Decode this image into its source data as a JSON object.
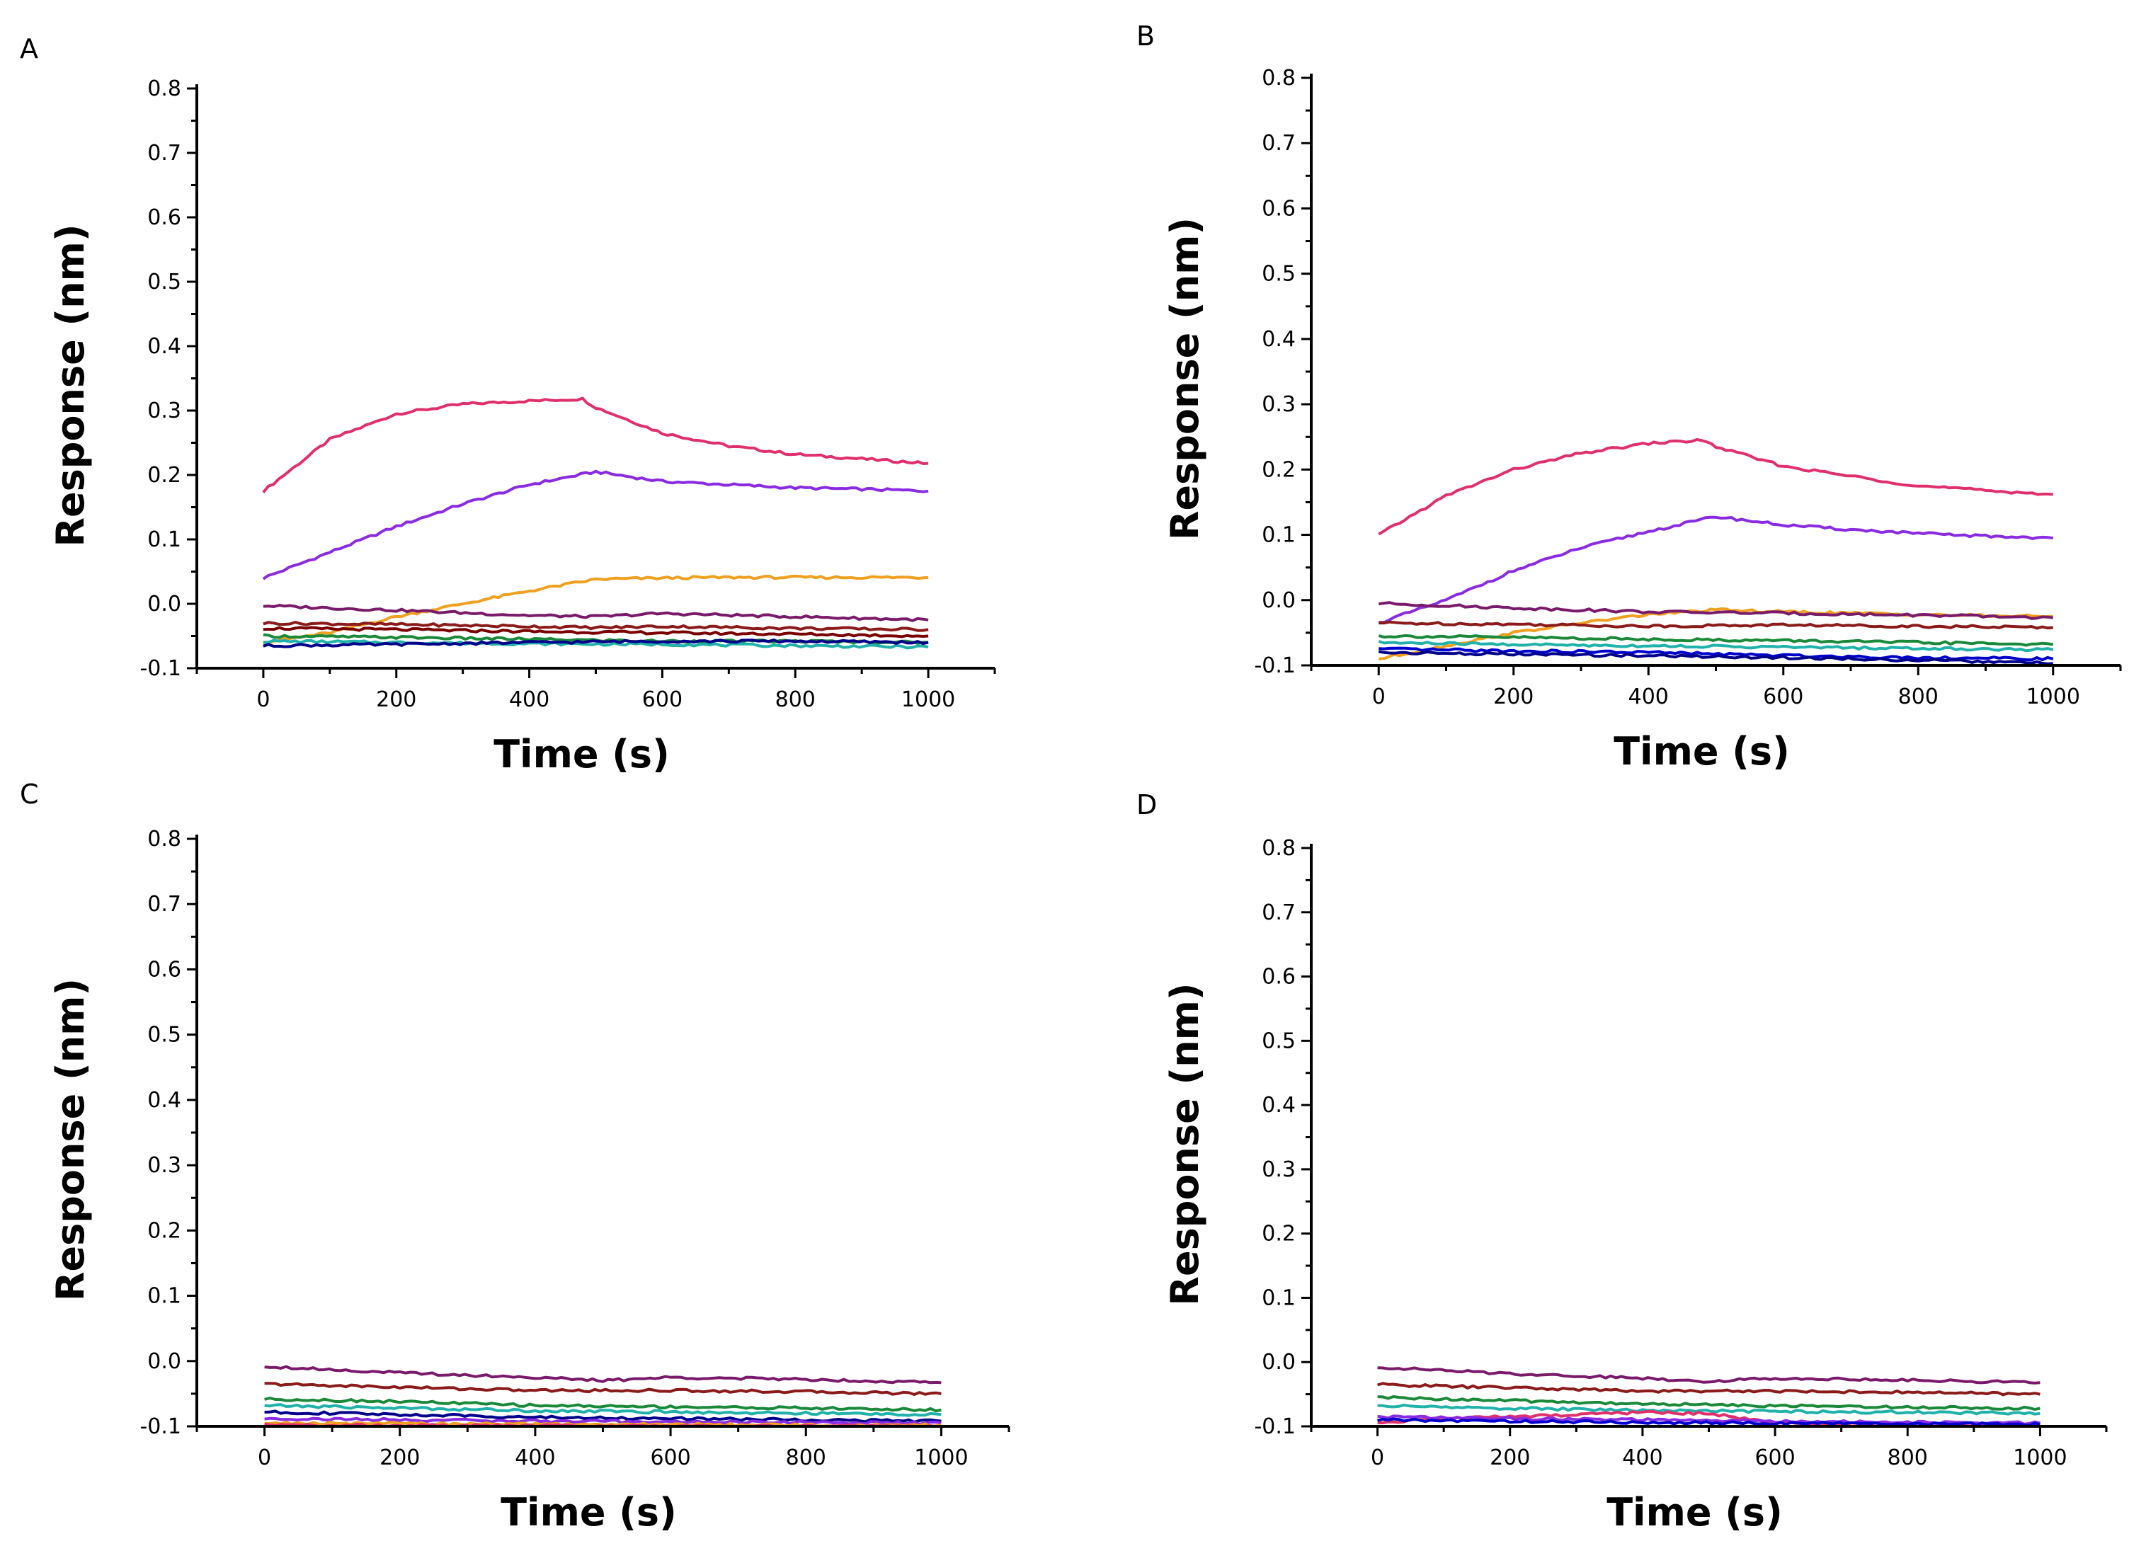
{
  "chart_data": [
    {
      "panel": "A",
      "type": "line",
      "xlabel": "Time (s)",
      "ylabel": "Response (nm)",
      "xlim": [
        -100,
        1100
      ],
      "ylim": [
        -0.1,
        0.8
      ],
      "x_ticks": [
        "0",
        "200",
        "400",
        "600",
        "800",
        "1000"
      ],
      "y_ticks": [
        "-0.1",
        "0.0",
        "0.1",
        "0.2",
        "0.3",
        "0.4",
        "0.5",
        "0.6",
        "0.7",
        "0.8"
      ],
      "series": [
        {
          "color": "#e0306a",
          "x": [
            0,
            100,
            200,
            300,
            400,
            480,
            500,
            600,
            700,
            800,
            900,
            1000
          ],
          "values": [
            0.175,
            0.255,
            0.295,
            0.31,
            0.315,
            0.318,
            0.305,
            0.265,
            0.245,
            0.232,
            0.225,
            0.218
          ]
        },
        {
          "color": "#8a2be2",
          "x": [
            0,
            100,
            200,
            300,
            400,
            500,
            600,
            700,
            800,
            900,
            1000
          ],
          "values": [
            0.04,
            0.08,
            0.12,
            0.155,
            0.185,
            0.205,
            0.19,
            0.185,
            0.18,
            0.178,
            0.175
          ]
        },
        {
          "color": "#f0a020",
          "x": [
            0,
            100,
            200,
            300,
            400,
            500,
            600,
            700,
            800,
            900,
            1000
          ],
          "values": [
            -0.06,
            -0.045,
            -0.02,
            0.0,
            0.02,
            0.038,
            0.04,
            0.041,
            0.041,
            0.041,
            0.041
          ]
        },
        {
          "color": "#7a1a6a",
          "x": [
            0,
            200,
            400,
            500,
            600,
            800,
            1000
          ],
          "values": [
            -0.003,
            -0.01,
            -0.018,
            -0.02,
            -0.015,
            -0.02,
            -0.025
          ]
        },
        {
          "color": "#8b1a1a",
          "x": [
            0,
            200,
            400,
            500,
            600,
            800,
            1000
          ],
          "values": [
            -0.03,
            -0.032,
            -0.035,
            -0.037,
            -0.035,
            -0.038,
            -0.04
          ]
        },
        {
          "color": "#7a0000",
          "x": [
            0,
            200,
            400,
            600,
            800,
            1000
          ],
          "values": [
            -0.038,
            -0.04,
            -0.043,
            -0.045,
            -0.047,
            -0.05
          ]
        },
        {
          "color": "#1a8a3a",
          "x": [
            0,
            200,
            400,
            600,
            800,
            1000
          ],
          "values": [
            -0.05,
            -0.052,
            -0.055,
            -0.058,
            -0.058,
            -0.06
          ]
        },
        {
          "color": "#20b2aa",
          "x": [
            0,
            200,
            400,
            600,
            800,
            1000
          ],
          "values": [
            -0.058,
            -0.06,
            -0.062,
            -0.063,
            -0.065,
            -0.067
          ]
        },
        {
          "color": "#00008b",
          "x": [
            0,
            200,
            400,
            600,
            800,
            1000
          ],
          "values": [
            -0.065,
            -0.063,
            -0.06,
            -0.058,
            -0.058,
            -0.06
          ]
        }
      ]
    },
    {
      "panel": "B",
      "type": "line",
      "xlabel": "Time (s)",
      "ylabel": "Response (nm)",
      "xlim": [
        -100,
        1100
      ],
      "ylim": [
        -0.1,
        0.8
      ],
      "x_ticks": [
        "0",
        "200",
        "400",
        "600",
        "800",
        "1000"
      ],
      "y_ticks": [
        "-0.1",
        "0.0",
        "0.1",
        "0.2",
        "0.3",
        "0.4",
        "0.5",
        "0.6",
        "0.7",
        "0.8"
      ],
      "series": [
        {
          "color": "#e0306a",
          "x": [
            0,
            100,
            200,
            300,
            400,
            480,
            500,
            600,
            700,
            800,
            900,
            1000
          ],
          "values": [
            0.1,
            0.16,
            0.2,
            0.225,
            0.24,
            0.245,
            0.235,
            0.205,
            0.19,
            0.175,
            0.168,
            0.162
          ]
        },
        {
          "color": "#8a2be2",
          "x": [
            0,
            100,
            200,
            300,
            400,
            500,
            600,
            700,
            800,
            900,
            1000
          ],
          "values": [
            -0.035,
            0.0,
            0.045,
            0.08,
            0.105,
            0.128,
            0.115,
            0.108,
            0.102,
            0.098,
            0.095
          ]
        },
        {
          "color": "#f0a020",
          "x": [
            0,
            100,
            200,
            300,
            400,
            500,
            600,
            700,
            800,
            900,
            1000
          ],
          "values": [
            -0.09,
            -0.07,
            -0.05,
            -0.035,
            -0.022,
            -0.015,
            -0.018,
            -0.02,
            -0.022,
            -0.024,
            -0.025
          ]
        },
        {
          "color": "#7a1a6a",
          "x": [
            0,
            200,
            400,
            600,
            800,
            1000
          ],
          "values": [
            -0.005,
            -0.012,
            -0.018,
            -0.02,
            -0.023,
            -0.027
          ]
        },
        {
          "color": "#8b1a1a",
          "x": [
            0,
            200,
            400,
            600,
            800,
            1000
          ],
          "values": [
            -0.035,
            -0.037,
            -0.04,
            -0.038,
            -0.04,
            -0.042
          ]
        },
        {
          "color": "#1a8a3a",
          "x": [
            0,
            200,
            400,
            600,
            800,
            1000
          ],
          "values": [
            -0.055,
            -0.057,
            -0.06,
            -0.062,
            -0.065,
            -0.068
          ]
        },
        {
          "color": "#20b2aa",
          "x": [
            0,
            200,
            400,
            600,
            800,
            1000
          ],
          "values": [
            -0.065,
            -0.068,
            -0.07,
            -0.072,
            -0.074,
            -0.076
          ]
        },
        {
          "color": "#0000cd",
          "x": [
            0,
            200,
            400,
            600,
            800,
            1000
          ],
          "values": [
            -0.075,
            -0.078,
            -0.08,
            -0.085,
            -0.088,
            -0.09
          ]
        },
        {
          "color": "#00008b",
          "x": [
            0,
            200,
            400,
            600,
            800,
            1000
          ],
          "values": [
            -0.08,
            -0.083,
            -0.085,
            -0.088,
            -0.092,
            -0.097
          ]
        }
      ]
    },
    {
      "panel": "C",
      "type": "line",
      "xlabel": "Time (s)",
      "ylabel": "Response (nm)",
      "xlim": [
        -100,
        1100
      ],
      "ylim": [
        -0.1,
        0.8
      ],
      "x_ticks": [
        "0",
        "200",
        "400",
        "600",
        "800",
        "1000"
      ],
      "y_ticks": [
        "-0.1",
        "0.0",
        "0.1",
        "0.2",
        "0.3",
        "0.4",
        "0.5",
        "0.6",
        "0.7",
        "0.8"
      ],
      "series": [
        {
          "color": "#7a1a6a",
          "x": [
            0,
            200,
            400,
            500,
            600,
            800,
            1000
          ],
          "values": [
            -0.008,
            -0.018,
            -0.025,
            -0.03,
            -0.025,
            -0.028,
            -0.033
          ]
        },
        {
          "color": "#8b1a1a",
          "x": [
            0,
            200,
            400,
            600,
            800,
            1000
          ],
          "values": [
            -0.035,
            -0.04,
            -0.045,
            -0.045,
            -0.047,
            -0.05
          ]
        },
        {
          "color": "#1a8a3a",
          "x": [
            0,
            200,
            400,
            600,
            800,
            1000
          ],
          "values": [
            -0.058,
            -0.062,
            -0.068,
            -0.07,
            -0.072,
            -0.075
          ]
        },
        {
          "color": "#20b2aa",
          "x": [
            0,
            200,
            400,
            600,
            800,
            1000
          ],
          "values": [
            -0.068,
            -0.072,
            -0.076,
            -0.078,
            -0.08,
            -0.082
          ]
        },
        {
          "color": "#00008b",
          "x": [
            0,
            200,
            400,
            600,
            800,
            1000
          ],
          "values": [
            -0.078,
            -0.082,
            -0.086,
            -0.088,
            -0.09,
            -0.092
          ]
        },
        {
          "color": "#8a2be2",
          "x": [
            0,
            200,
            400,
            600,
            800,
            1000
          ],
          "values": [
            -0.088,
            -0.09,
            -0.092,
            -0.093,
            -0.094,
            -0.095
          ]
        },
        {
          "color": "#f0a020",
          "x": [
            0,
            200,
            400,
            600,
            800,
            1000
          ],
          "values": [
            -0.095,
            -0.096,
            -0.097,
            -0.097,
            -0.098,
            -0.098
          ]
        },
        {
          "color": "#e0306a",
          "x": [
            0,
            200,
            400,
            600,
            800,
            1000
          ],
          "values": [
            -0.098,
            -0.099,
            -0.099,
            -0.1,
            -0.1,
            -0.1
          ]
        }
      ]
    },
    {
      "panel": "D",
      "type": "line",
      "xlabel": "Time (s)",
      "ylabel": "Response (nm)",
      "xlim": [
        -100,
        1100
      ],
      "ylim": [
        -0.1,
        0.8
      ],
      "x_ticks": [
        "0",
        "200",
        "400",
        "600",
        "800",
        "1000"
      ],
      "y_ticks": [
        "-0.1",
        "0.0",
        "0.1",
        "0.2",
        "0.3",
        "0.4",
        "0.5",
        "0.6",
        "0.7",
        "0.8"
      ],
      "series": [
        {
          "color": "#7a1a6a",
          "x": [
            0,
            200,
            400,
            500,
            600,
            800,
            1000
          ],
          "values": [
            -0.008,
            -0.018,
            -0.025,
            -0.03,
            -0.025,
            -0.028,
            -0.032
          ]
        },
        {
          "color": "#8b1a1a",
          "x": [
            0,
            200,
            400,
            600,
            800,
            1000
          ],
          "values": [
            -0.035,
            -0.04,
            -0.045,
            -0.045,
            -0.047,
            -0.05
          ]
        },
        {
          "color": "#1a8a3a",
          "x": [
            0,
            200,
            400,
            600,
            800,
            1000
          ],
          "values": [
            -0.055,
            -0.06,
            -0.065,
            -0.068,
            -0.07,
            -0.072
          ]
        },
        {
          "color": "#20b2aa",
          "x": [
            0,
            200,
            400,
            600,
            800,
            1000
          ],
          "values": [
            -0.068,
            -0.072,
            -0.075,
            -0.077,
            -0.078,
            -0.08
          ]
        },
        {
          "color": "#e0306a",
          "x": [
            0,
            100,
            200,
            300,
            400,
            500,
            600,
            700,
            800,
            900,
            1000
          ],
          "values": [
            -0.095,
            -0.088,
            -0.085,
            -0.082,
            -0.078,
            -0.08,
            -0.095,
            -0.098,
            -0.1,
            -0.1,
            -0.1
          ]
        },
        {
          "color": "#8a2be2",
          "x": [
            0,
            200,
            400,
            600,
            800,
            1000
          ],
          "values": [
            -0.085,
            -0.088,
            -0.09,
            -0.092,
            -0.094,
            -0.095
          ]
        },
        {
          "color": "#0000cd",
          "x": [
            0,
            200,
            400,
            600,
            800,
            1000
          ],
          "values": [
            -0.09,
            -0.092,
            -0.094,
            -0.095,
            -0.096,
            -0.097
          ]
        }
      ]
    }
  ]
}
